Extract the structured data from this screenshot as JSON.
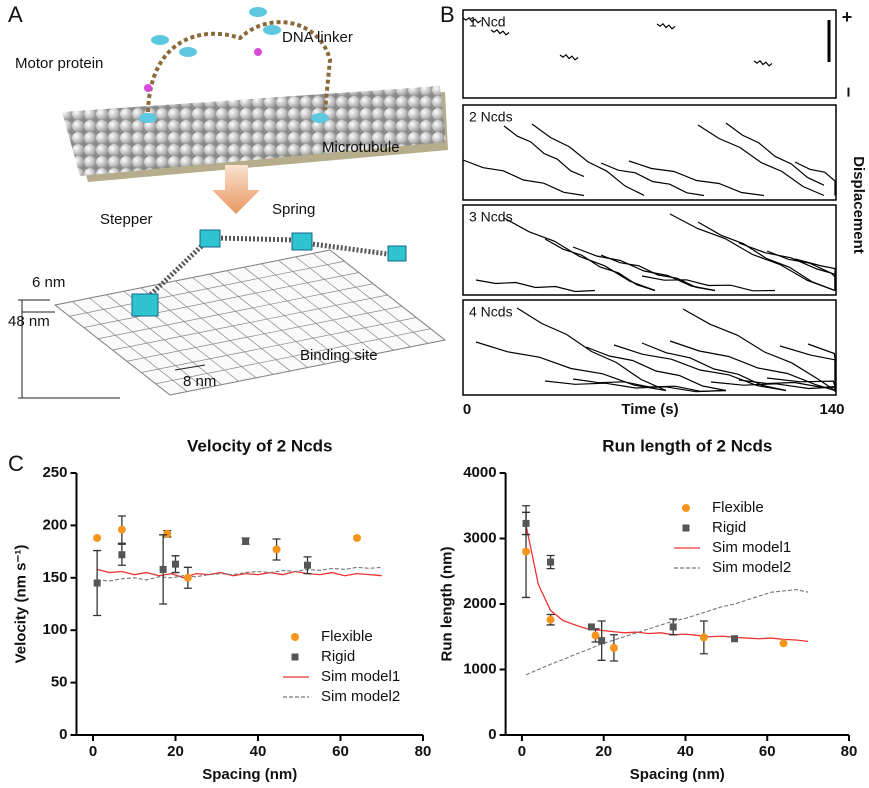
{
  "panels": {
    "a": {
      "label": "A",
      "motor_protein": "Motor protein",
      "dna_linker": "DNA linker",
      "microtubule": "Microtubule",
      "stepper": "Stepper",
      "spring": "Spring",
      "spacing_6": "6 nm",
      "spacing_48": "48 nm",
      "spacing_8": "8 nm",
      "binding_site": "Binding site"
    },
    "b": {
      "label": "B",
      "kymographs": [
        "1 Ncd",
        "2 Ncds",
        "3 Ncds",
        "4 Ncds"
      ],
      "plus": "+",
      "minus": "−",
      "x_start": "0",
      "x_label": "Time (s)",
      "x_end": "140",
      "y_label": "Displacement"
    },
    "c": {
      "label": "C"
    }
  },
  "chart_data": [
    {
      "type": "scatter",
      "title": "Velocity of 2 Ncds",
      "x_label": "Spacing (nm)",
      "y_label": "Velocity (nm s⁻¹)",
      "xlim": [
        -4,
        80
      ],
      "xticks": [
        0,
        20,
        40,
        60,
        80
      ],
      "ylim": [
        0,
        250
      ],
      "yticks": [
        0,
        50,
        100,
        150,
        200,
        250
      ],
      "legend": "lower right",
      "series": [
        {
          "name": "Flexible",
          "color": "#f7941d",
          "style": "circle",
          "x": [
            1,
            7,
            18,
            23,
            44.5,
            64
          ],
          "values": [
            188,
            196,
            192,
            150,
            177,
            188
          ],
          "errors": [
            null,
            13,
            3,
            10,
            10,
            null
          ]
        },
        {
          "name": "Rigid",
          "color": "#555555",
          "style": "square",
          "x": [
            1,
            7,
            17,
            20,
            37,
            52
          ],
          "values": [
            145,
            172,
            158,
            163,
            185,
            162
          ],
          "errors": [
            31,
            10,
            33,
            8,
            3,
            8
          ]
        },
        {
          "name": "Sim model1",
          "color": "#ee3333",
          "style": "solid",
          "x": [
            1,
            4,
            7,
            10,
            13,
            16,
            19,
            22,
            25,
            28,
            31,
            34,
            37,
            40,
            43,
            46,
            49,
            52,
            55,
            58,
            61,
            64,
            67,
            70
          ],
          "values": [
            158,
            155,
            156,
            153,
            155,
            152,
            154,
            150,
            154,
            153,
            155,
            152,
            154,
            153,
            155,
            153,
            156,
            154,
            153,
            155,
            152,
            154,
            153,
            152
          ]
        },
        {
          "name": "Sim model2",
          "color": "#777777",
          "style": "dashed",
          "x": [
            1,
            4,
            7,
            10,
            13,
            16,
            19,
            22,
            25,
            28,
            31,
            34,
            37,
            40,
            43,
            46,
            49,
            52,
            55,
            58,
            61,
            64,
            67,
            70
          ],
          "values": [
            148,
            147,
            149,
            150,
            148,
            151,
            150,
            152,
            151,
            153,
            154,
            153,
            155,
            156,
            155,
            157,
            156,
            158,
            157,
            159,
            158,
            160,
            159,
            160
          ]
        }
      ]
    },
    {
      "type": "scatter",
      "title": "Run length of 2 Ncds",
      "x_label": "Spacing (nm)",
      "y_label": "Run length (nm)",
      "xlim": [
        -4,
        80
      ],
      "xticks": [
        0,
        20,
        40,
        60,
        80
      ],
      "ylim": [
        0,
        4000
      ],
      "yticks": [
        0,
        1000,
        2000,
        3000,
        4000
      ],
      "legend": "upper right",
      "series": [
        {
          "name": "Flexible",
          "color": "#f7941d",
          "style": "circle",
          "x": [
            1,
            7,
            18,
            22.5,
            44.5,
            64
          ],
          "values": [
            2800,
            1760,
            1520,
            1330,
            1490,
            1400
          ],
          "errors": [
            700,
            80,
            100,
            200,
            250,
            null
          ]
        },
        {
          "name": "Rigid",
          "color": "#555555",
          "style": "square",
          "x": [
            1,
            7,
            17,
            19.5,
            37,
            52
          ],
          "values": [
            3230,
            2640,
            1650,
            1440,
            1650,
            1470
          ],
          "errors": [
            170,
            100,
            null,
            300,
            120,
            null
          ]
        },
        {
          "name": "Sim model1",
          "color": "#ee3333",
          "style": "solid",
          "x": [
            1,
            4,
            7,
            10,
            13,
            16,
            19,
            22,
            25,
            28,
            31,
            34,
            37,
            40,
            43,
            46,
            49,
            52,
            55,
            58,
            61,
            64,
            67,
            70
          ],
          "values": [
            3200,
            2300,
            1900,
            1750,
            1680,
            1620,
            1600,
            1580,
            1560,
            1570,
            1550,
            1560,
            1530,
            1540,
            1520,
            1500,
            1510,
            1490,
            1480,
            1470,
            1480,
            1460,
            1450,
            1430
          ]
        },
        {
          "name": "Sim model2",
          "color": "#777777",
          "style": "dashed",
          "x": [
            1,
            4,
            7,
            10,
            13,
            16,
            19,
            22,
            25,
            28,
            31,
            34,
            37,
            40,
            43,
            46,
            49,
            52,
            55,
            58,
            61,
            64,
            67,
            70
          ],
          "values": [
            920,
            1000,
            1080,
            1150,
            1230,
            1300,
            1380,
            1440,
            1500,
            1560,
            1620,
            1680,
            1740,
            1780,
            1840,
            1900,
            1960,
            2000,
            2060,
            2120,
            2180,
            2200,
            2220,
            2180
          ]
        }
      ]
    }
  ]
}
